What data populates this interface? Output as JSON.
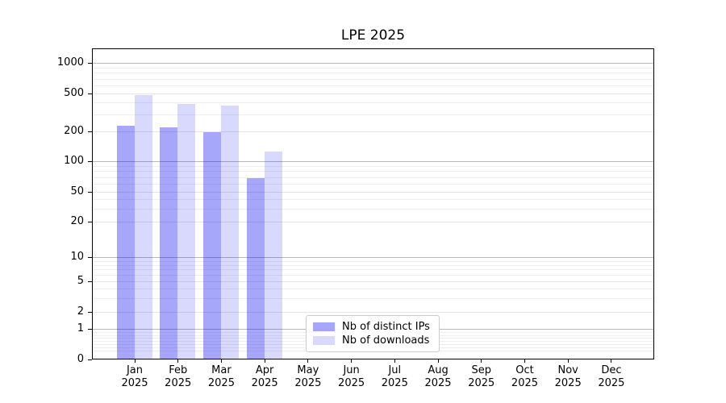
{
  "title": "LPE 2025",
  "chart_data": {
    "type": "bar",
    "title": "LPE 2025",
    "categories": [
      "Jan",
      "Feb",
      "Mar",
      "Apr",
      "May",
      "Jun",
      "Jul",
      "Aug",
      "Sep",
      "Oct",
      "Nov",
      "Dec"
    ],
    "category_year": "2025",
    "series": [
      {
        "name": "Nb of distinct IPs",
        "color": "rgba(0,0,240,0.35)",
        "values": [
          230,
          220,
          195,
          68,
          null,
          null,
          null,
          null,
          null,
          null,
          null,
          null
        ]
      },
      {
        "name": "Nb of downloads",
        "color": "rgba(0,0,240,0.15)",
        "values": [
          480,
          390,
          370,
          125,
          null,
          null,
          null,
          null,
          null,
          null,
          null,
          null
        ]
      }
    ],
    "yticks": [
      0,
      1,
      2,
      5,
      10,
      20,
      50,
      100,
      200,
      500,
      1000
    ],
    "yscale": "symlog",
    "ylim": [
      0,
      1400
    ],
    "grid": "both",
    "legend_position": "lower center",
    "grid_colors": {
      "decade": "#b9b9b9",
      "labeled": "#e5e5e5",
      "minor": "#eeeeee"
    }
  },
  "legend": {
    "items": [
      {
        "label": "Nb of distinct IPs",
        "color": "rgba(0,0,240,0.35)"
      },
      {
        "label": "Nb of downloads",
        "color": "rgba(0,0,240,0.15)"
      }
    ]
  }
}
